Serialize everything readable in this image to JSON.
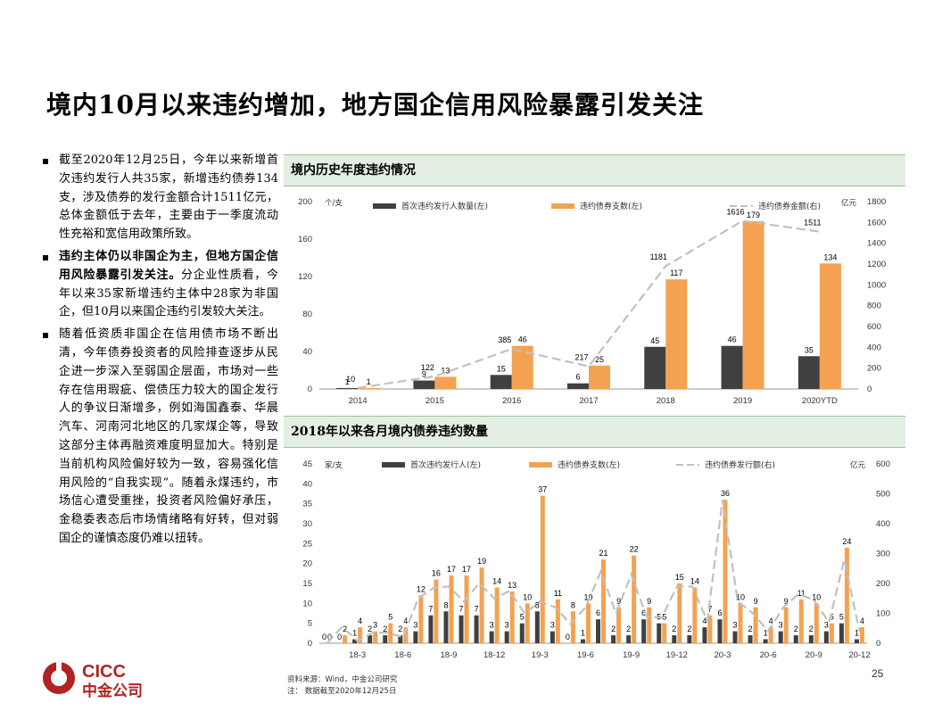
{
  "title": "境内10月以来违约增加，地方国企信用风险暴露引发关注",
  "bullets": [
    {
      "bold": "",
      "text": "截至2020年12月25日，今年以来新增首次违约发行人共35家，新增违约债券134支，涉及债券的发行金额合计1511亿元，总体金额低于去年，主要由于一季度流动性充裕和宽信用政策所致。"
    },
    {
      "bold": "违约主体仍以非国企为主，但地方国企信用风险暴露引发关注。",
      "text": "分企业性质看，今年以来35家新增违约主体中28家为非国企，但10月以来国企违约引发较大关注。"
    },
    {
      "bold": "",
      "text": "随着低资质非国企在信用债市场不断出清，今年债券投资者的风险排查逐步从民企进一步深入至弱国企层面，市场对一些存在信用瑕疵、偿债压力较大的国企发行人的争议日渐增多，例如海国鑫泰、华晨汽车、河南河北地区的几家煤企等，导致这部分主体再融资难度明显加大。特别是当前机构风险偏好较为一致，容易强化信用风险的“自我实现”。随着永煤违约，市场信心遭受重挫，投资者风险偏好承压，金稳委表态后市场情绪略有好转，但对弱国企的谨慎态度仍难以扭转。"
    }
  ],
  "panel1_title": "境内历史年度违约情况",
  "panel2_title": "2018年以来各月境内债券违约数量",
  "source_note": "资料来源：Wind，中金公司研究",
  "date_note": "注： 数据截至2020年12月25日",
  "page_number": "25",
  "logo": {
    "en": "CICC",
    "cn": "中金公司",
    "color": "#b22222"
  },
  "colors": {
    "dark": "#404040",
    "orange": "#f4a251",
    "line": "#c0c0c0",
    "panel_bg": "#e2efe2"
  },
  "chart_data": [
    {
      "type": "bar",
      "title": "境内历史年度违约情况",
      "categories": [
        "2014",
        "2015",
        "2016",
        "2017",
        "2018",
        "2019",
        "2020YTD"
      ],
      "left_unit": "个/支",
      "right_unit": "亿元",
      "ylim_left": [
        0,
        200
      ],
      "ylim_right": [
        0,
        1800
      ],
      "left_ticks": [
        0,
        40,
        80,
        120,
        160,
        200
      ],
      "right_ticks": [
        0,
        200,
        400,
        600,
        800,
        1000,
        1200,
        1400,
        1600,
        1800
      ],
      "series": [
        {
          "name": "首次违约发行人数量(左)",
          "kind": "bar",
          "axis": "left",
          "color": "#404040",
          "values": [
            1,
            9,
            15,
            6,
            45,
            46,
            35
          ]
        },
        {
          "name": "违约债券支数(左)",
          "kind": "bar",
          "axis": "left",
          "color": "#f4a251",
          "values": [
            1,
            13,
            46,
            25,
            117,
            179,
            134
          ]
        },
        {
          "name": "违约债券金额(右)",
          "kind": "line",
          "axis": "right",
          "color": "#c0c0c0",
          "values": [
            10,
            122,
            385,
            217,
            1181,
            1616,
            1511
          ]
        }
      ],
      "data_labels": [
        [
          "1",
          "9",
          "15",
          "6",
          "45",
          "46",
          "35"
        ],
        [
          "1",
          "13",
          "46",
          "25",
          "117",
          "179",
          "134"
        ],
        [
          "10",
          "122",
          "385",
          "217",
          "1181",
          "1616",
          "1511"
        ]
      ],
      "legend": "top"
    },
    {
      "type": "bar",
      "title": "2018年以来各月境内债券违约数量",
      "categories": [
        "18-1",
        "18-2",
        "18-3",
        "18-4",
        "18-5",
        "18-6",
        "18-7",
        "18-8",
        "18-9",
        "18-10",
        "18-11",
        "18-12",
        "19-1",
        "19-2",
        "19-3",
        "19-4",
        "19-5",
        "19-6",
        "19-7",
        "19-8",
        "19-9",
        "19-10",
        "19-11",
        "19-12",
        "20-1",
        "20-2",
        "20-3",
        "20-4",
        "20-5",
        "20-6",
        "20-7",
        "20-8",
        "20-9",
        "20-10",
        "20-11",
        "20-12"
      ],
      "x_tick_labels": [
        "18-3",
        "18-6",
        "18-9",
        "18-12",
        "19-3",
        "19-6",
        "19-9",
        "19-12",
        "20-3",
        "20-6",
        "20-9",
        "20-12"
      ],
      "left_unit": "家/支",
      "right_unit": "亿元",
      "ylim_left": [
        0,
        45
      ],
      "ylim_right": [
        0,
        600
      ],
      "left_ticks": [
        0,
        5,
        10,
        15,
        20,
        25,
        30,
        35,
        40,
        45
      ],
      "right_ticks": [
        0,
        100,
        200,
        300,
        400,
        500,
        600
      ],
      "series": [
        {
          "name": "首次违约发行人(左)",
          "kind": "bar",
          "axis": "left",
          "color": "#404040",
          "values": [
            0,
            0,
            1,
            2,
            2,
            2,
            3,
            7,
            8,
            7,
            7,
            3,
            3,
            5,
            8,
            3,
            0,
            1,
            6,
            2,
            2,
            6,
            5,
            2,
            2,
            4,
            6,
            3,
            2,
            1,
            3,
            2,
            2,
            3,
            5,
            1
          ]
        },
        {
          "name": "违约债券支数(左)",
          "kind": "bar",
          "axis": "left",
          "color": "#f4a251",
          "values": [
            0,
            2,
            4,
            3,
            5,
            4,
            12,
            16,
            17,
            17,
            19,
            14,
            13,
            10,
            37,
            11,
            8,
            10,
            21,
            9,
            22,
            9,
            5,
            15,
            14,
            7,
            36,
            10,
            9,
            4,
            9,
            11,
            10,
            5,
            24,
            4
          ]
        },
        {
          "name": "违约债券发行额(右)",
          "kind": "line",
          "axis": "right",
          "color": "#c0c0c0",
          "values": [
            0,
            55,
            8,
            35,
            35,
            20,
            150,
            185,
            190,
            140,
            200,
            150,
            175,
            100,
            140,
            120,
            65,
            120,
            240,
            100,
            230,
            90,
            85,
            190,
            190,
            75,
            480,
            140,
            100,
            40,
            120,
            165,
            145,
            70,
            280,
            40
          ]
        }
      ],
      "data_labels": [
        [
          "0",
          "0",
          "1",
          "2",
          "2",
          "2",
          "3",
          "7",
          "8",
          "7",
          "7",
          "3",
          "3",
          "5",
          "8",
          "3",
          "0",
          "1",
          "6",
          "2",
          "2",
          "6",
          "5",
          "2",
          "2",
          "4",
          "6",
          "3",
          "2",
          "1",
          "3",
          "2",
          "2",
          "3",
          "5",
          "1"
        ],
        [
          "0",
          "2",
          "4",
          "3",
          "5",
          "4",
          "12",
          "16",
          "17",
          "17",
          "19",
          "14",
          "13",
          "10",
          "37",
          "11",
          "8",
          "10",
          "21",
          "9",
          "22",
          "9",
          "5",
          "15",
          "14",
          "7",
          "36",
          "10",
          "9",
          "4",
          "9",
          "11",
          "10",
          "5",
          "24",
          "4"
        ]
      ],
      "legend": "top"
    }
  ]
}
